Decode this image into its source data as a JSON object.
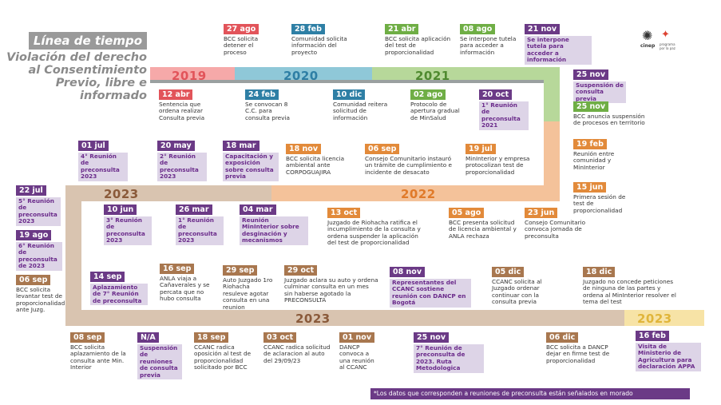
{
  "title": {
    "main": "Línea de tiempo",
    "sub": "Violación del derecho al Consentimiento Previo, libre e informado"
  },
  "logo": {
    "name": "cinep",
    "tagline": "programa por la paz"
  },
  "years": {
    "y2019": "2019",
    "y2020": "2020",
    "y2021": "2021",
    "y2022": "2022",
    "y2023a": "2023",
    "y2023b": "2023",
    "y2023c": "2023"
  },
  "colors": {
    "y2019": "#f6a9a9",
    "y2020": "#8fc8d8",
    "y2021": "#b7d89a",
    "y2022": "#f4c29a",
    "y2023": "#d9c4b0",
    "purple": "#6b3a86",
    "yellow": "#f7e3a6"
  },
  "events": [
    {
      "id": "e1",
      "date": "27 ago",
      "text": "BCC solicita detener el proceso",
      "color": "red",
      "purple": false
    },
    {
      "id": "e2",
      "date": "28 feb",
      "text": "Comunidad solicita información del proyecto",
      "color": "blue",
      "purple": false
    },
    {
      "id": "e3",
      "date": "21 abr",
      "text": "BCC solicita aplicación del test de proporcionalidad",
      "color": "green",
      "purple": false
    },
    {
      "id": "e4",
      "date": "08 ago",
      "text": "Se interpone tutela para acceder a información",
      "color": "green",
      "purple": false
    },
    {
      "id": "e5",
      "date": "21 nov",
      "text": "Se interpone tutela para acceder a información",
      "color": "purple",
      "purple": true
    },
    {
      "id": "e6",
      "date": "12 abr",
      "text": "Sentencia que ordena realizar Consulta previa",
      "color": "red",
      "purple": false
    },
    {
      "id": "e7",
      "date": "24 feb",
      "text": "Se convocan 8 C.C. para consulta previa",
      "color": "blue",
      "purple": false
    },
    {
      "id": "e8",
      "date": "10 dic",
      "text": "Comunidad reitera solicitud de información",
      "color": "blue",
      "purple": false
    },
    {
      "id": "e9",
      "date": "02 ago",
      "text": "Protocolo de apertura gradual de MinSalud",
      "color": "green",
      "purple": false
    },
    {
      "id": "e10",
      "date": "20 oct",
      "text": "1° Reunión de preconsulta 2021",
      "color": "purple",
      "purple": true
    },
    {
      "id": "e11",
      "date": "25 nov",
      "text": "Suspensión de consulta previa",
      "color": "purple",
      "purple": true
    },
    {
      "id": "e12",
      "date": "25 nov",
      "text": "BCC anuncia suspensión de procesos en territorio",
      "color": "green",
      "purple": false
    },
    {
      "id": "e13",
      "date": "01 jul",
      "text": "4° Reunión de preconsulta 2023",
      "color": "purple",
      "purple": true
    },
    {
      "id": "e14",
      "date": "20 may",
      "text": "2° Reunión de preconsulta 2023",
      "color": "purple",
      "purple": true
    },
    {
      "id": "e15",
      "date": "18 mar",
      "text": "Capacitación y exposición sobre consulta previa",
      "color": "purple",
      "purple": true
    },
    {
      "id": "e16",
      "date": "18 nov",
      "text": "BCC solicita licencia ambiental ante CORPOGUAJIRA",
      "color": "orange",
      "purple": false
    },
    {
      "id": "e17",
      "date": "06 sep",
      "text": "Consejo Comunitario instauró un trámite de cumplimiento e incidente de desacato",
      "color": "orange",
      "purple": false
    },
    {
      "id": "e18",
      "date": "19 jul",
      "text": "MinInterior y empresa protocolizan test de proporcionalidad",
      "color": "orange",
      "purple": false
    },
    {
      "id": "e19",
      "date": "19 feb",
      "text": "Reunión entre comunidad y MinInterior",
      "color": "orange",
      "purple": false
    },
    {
      "id": "e20",
      "date": "15 jun",
      "text": "Primera sesión de test de proporcionalidad",
      "color": "orange",
      "purple": false
    },
    {
      "id": "e21",
      "date": "22 jul",
      "text": "5° Reunión de preconsulta 2023",
      "color": "purple",
      "purple": true
    },
    {
      "id": "e22",
      "date": "19 ago",
      "text": "6° Reunión de preconsulta de 2023",
      "color": "purple",
      "purple": true
    },
    {
      "id": "e23",
      "date": "06 sep",
      "text": "BCC solicita levantar test de proporcionalidad ante Juzg.",
      "color": "brown",
      "purple": false
    },
    {
      "id": "e24",
      "date": "10 jun",
      "text": "3° Reunión de preconsulta 2023",
      "color": "purple",
      "purple": true
    },
    {
      "id": "e25",
      "date": "26 mar",
      "text": "1° Reunión de preconsulta 2023",
      "color": "purple",
      "purple": true
    },
    {
      "id": "e26",
      "date": "04 mar",
      "text": "Reunión MinInterior sobre desginación y mecanismos",
      "color": "purple",
      "purple": true
    },
    {
      "id": "e27",
      "date": "13 oct",
      "text": "Juzgado de Riohacha ratifica el incumplimiento de la consulta y ordena suspender la aplicación del test de proporcionalidad",
      "color": "orange",
      "purple": false
    },
    {
      "id": "e28",
      "date": "05 ago",
      "text": "BCC presenta solicitud de licencia ambiental y ANLA rechaza",
      "color": "orange",
      "purple": false
    },
    {
      "id": "e29",
      "date": "23 jun",
      "text": "Consejo Comunitario convoca jornada de preconsulta",
      "color": "orange",
      "purple": false
    },
    {
      "id": "e30",
      "date": "14 sep",
      "text": "Aplazamiento de 7° Reunión de preconsulta",
      "color": "purple",
      "purple": true
    },
    {
      "id": "e31",
      "date": "16 sep",
      "text": "ANLA viaja a Cañaverales y se percata que no hubo consulta",
      "color": "brown",
      "purple": false
    },
    {
      "id": "e32",
      "date": "29 sep",
      "text": "Auto Juzgado 1ro Riohacha resuleve agotar consulta en una reunion",
      "color": "brown",
      "purple": false
    },
    {
      "id": "e33",
      "date": "29 oct",
      "text": "Juzgado aclara su auto y ordena culminar consulta en un mes sin haberse agotado la PRECONSULTA",
      "color": "brown",
      "purple": false
    },
    {
      "id": "e34",
      "date": "08 nov",
      "text": "Representantes del CCANC sostiene reunión con DANCP en Bogotá",
      "color": "purple",
      "purple": true
    },
    {
      "id": "e35",
      "date": "05 dic",
      "text": "CCANC solicita al Juzgado ordenar continuar con la consulta previa",
      "color": "brown",
      "purple": false
    },
    {
      "id": "e36",
      "date": "18 dic",
      "text": "Juzgado no concede peticiones de ninguna de las partes y ordena al MinInterior resolver el tema del test",
      "color": "brown",
      "purple": false
    },
    {
      "id": "e37",
      "date": "08 sep",
      "text": "BCC solicita aplazamiento de la consulta ante Min. Interior",
      "color": "brown",
      "purple": false
    },
    {
      "id": "e38",
      "date": "N/A",
      "text": "Suspensión de reuniones de consulta previa",
      "color": "purple",
      "purple": true
    },
    {
      "id": "e39",
      "date": "18 sep",
      "text": "CCANC radica oposición al test de proporcionalidad solicitado por BCC",
      "color": "brown",
      "purple": false
    },
    {
      "id": "e40",
      "date": "03 oct",
      "text": "CCANC radica solicitud de aclaracion al auto del 29/09/23",
      "color": "brown",
      "purple": false
    },
    {
      "id": "e41",
      "date": "01 nov",
      "text": "DANCP convoca a una reunión al CCANC",
      "color": "brown",
      "purple": false
    },
    {
      "id": "e42",
      "date": "25 nov",
      "text": "7° Reunión de preconsulta de 2023. Ruta Metodologica",
      "color": "purple",
      "purple": true
    },
    {
      "id": "e43",
      "date": "06 dic",
      "text": "BCC solicita a DANCP dejar en firme test de proporcionalidad",
      "color": "brown",
      "purple": false
    },
    {
      "id": "e44",
      "date": "16 feb",
      "text": "Visita de Ministerio de Agricultura para declaración APPA",
      "color": "purple",
      "purple": true
    }
  ],
  "note": "*Los datos que corresponden a reuniones de preconsulta están señalados en morado"
}
